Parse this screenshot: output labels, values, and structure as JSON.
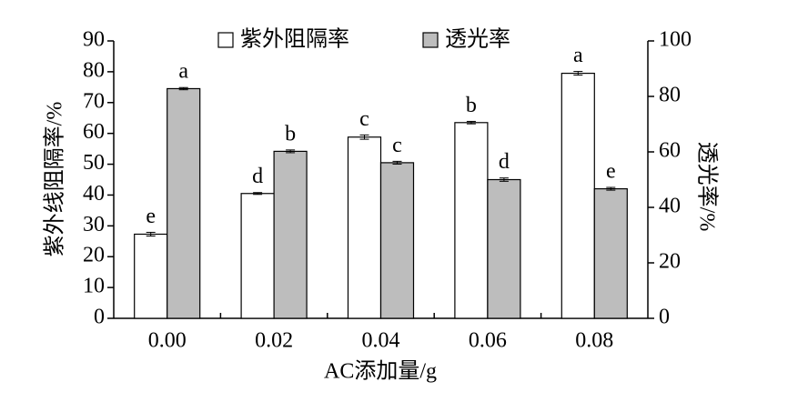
{
  "chart_data": {
    "type": "bar",
    "categories": [
      "0.00",
      "0.02",
      "0.04",
      "0.06",
      "0.08"
    ],
    "xlabel": "AC添加量/g",
    "ylabel": "紫外线阻隔率/%",
    "y2label": "透光率/%",
    "ylim": [
      0,
      90
    ],
    "yticks": [
      0,
      10,
      20,
      30,
      40,
      50,
      60,
      70,
      80,
      90
    ],
    "y2lim": [
      0,
      100
    ],
    "y2ticks": [
      0,
      20,
      40,
      60,
      80,
      100
    ],
    "legend": "top",
    "series": [
      {
        "name": "紫外阻隔率",
        "color": "#ffffff",
        "values": [
          27.3,
          40.5,
          58.8,
          63.5,
          79.5
        ],
        "errors": [
          0.6,
          0.3,
          0.7,
          0.4,
          0.6
        ],
        "letters": [
          "e",
          "d",
          "c",
          "b",
          "a"
        ]
      },
      {
        "name": "透光率",
        "color": "#bdbdbd",
        "axis": "y2",
        "values": [
          82.8,
          60.2,
          56.1,
          50.0,
          46.7
        ],
        "errors": [
          0.4,
          0.5,
          0.5,
          0.6,
          0.5
        ],
        "letters": [
          "a",
          "b",
          "c",
          "d",
          "e"
        ]
      }
    ]
  }
}
